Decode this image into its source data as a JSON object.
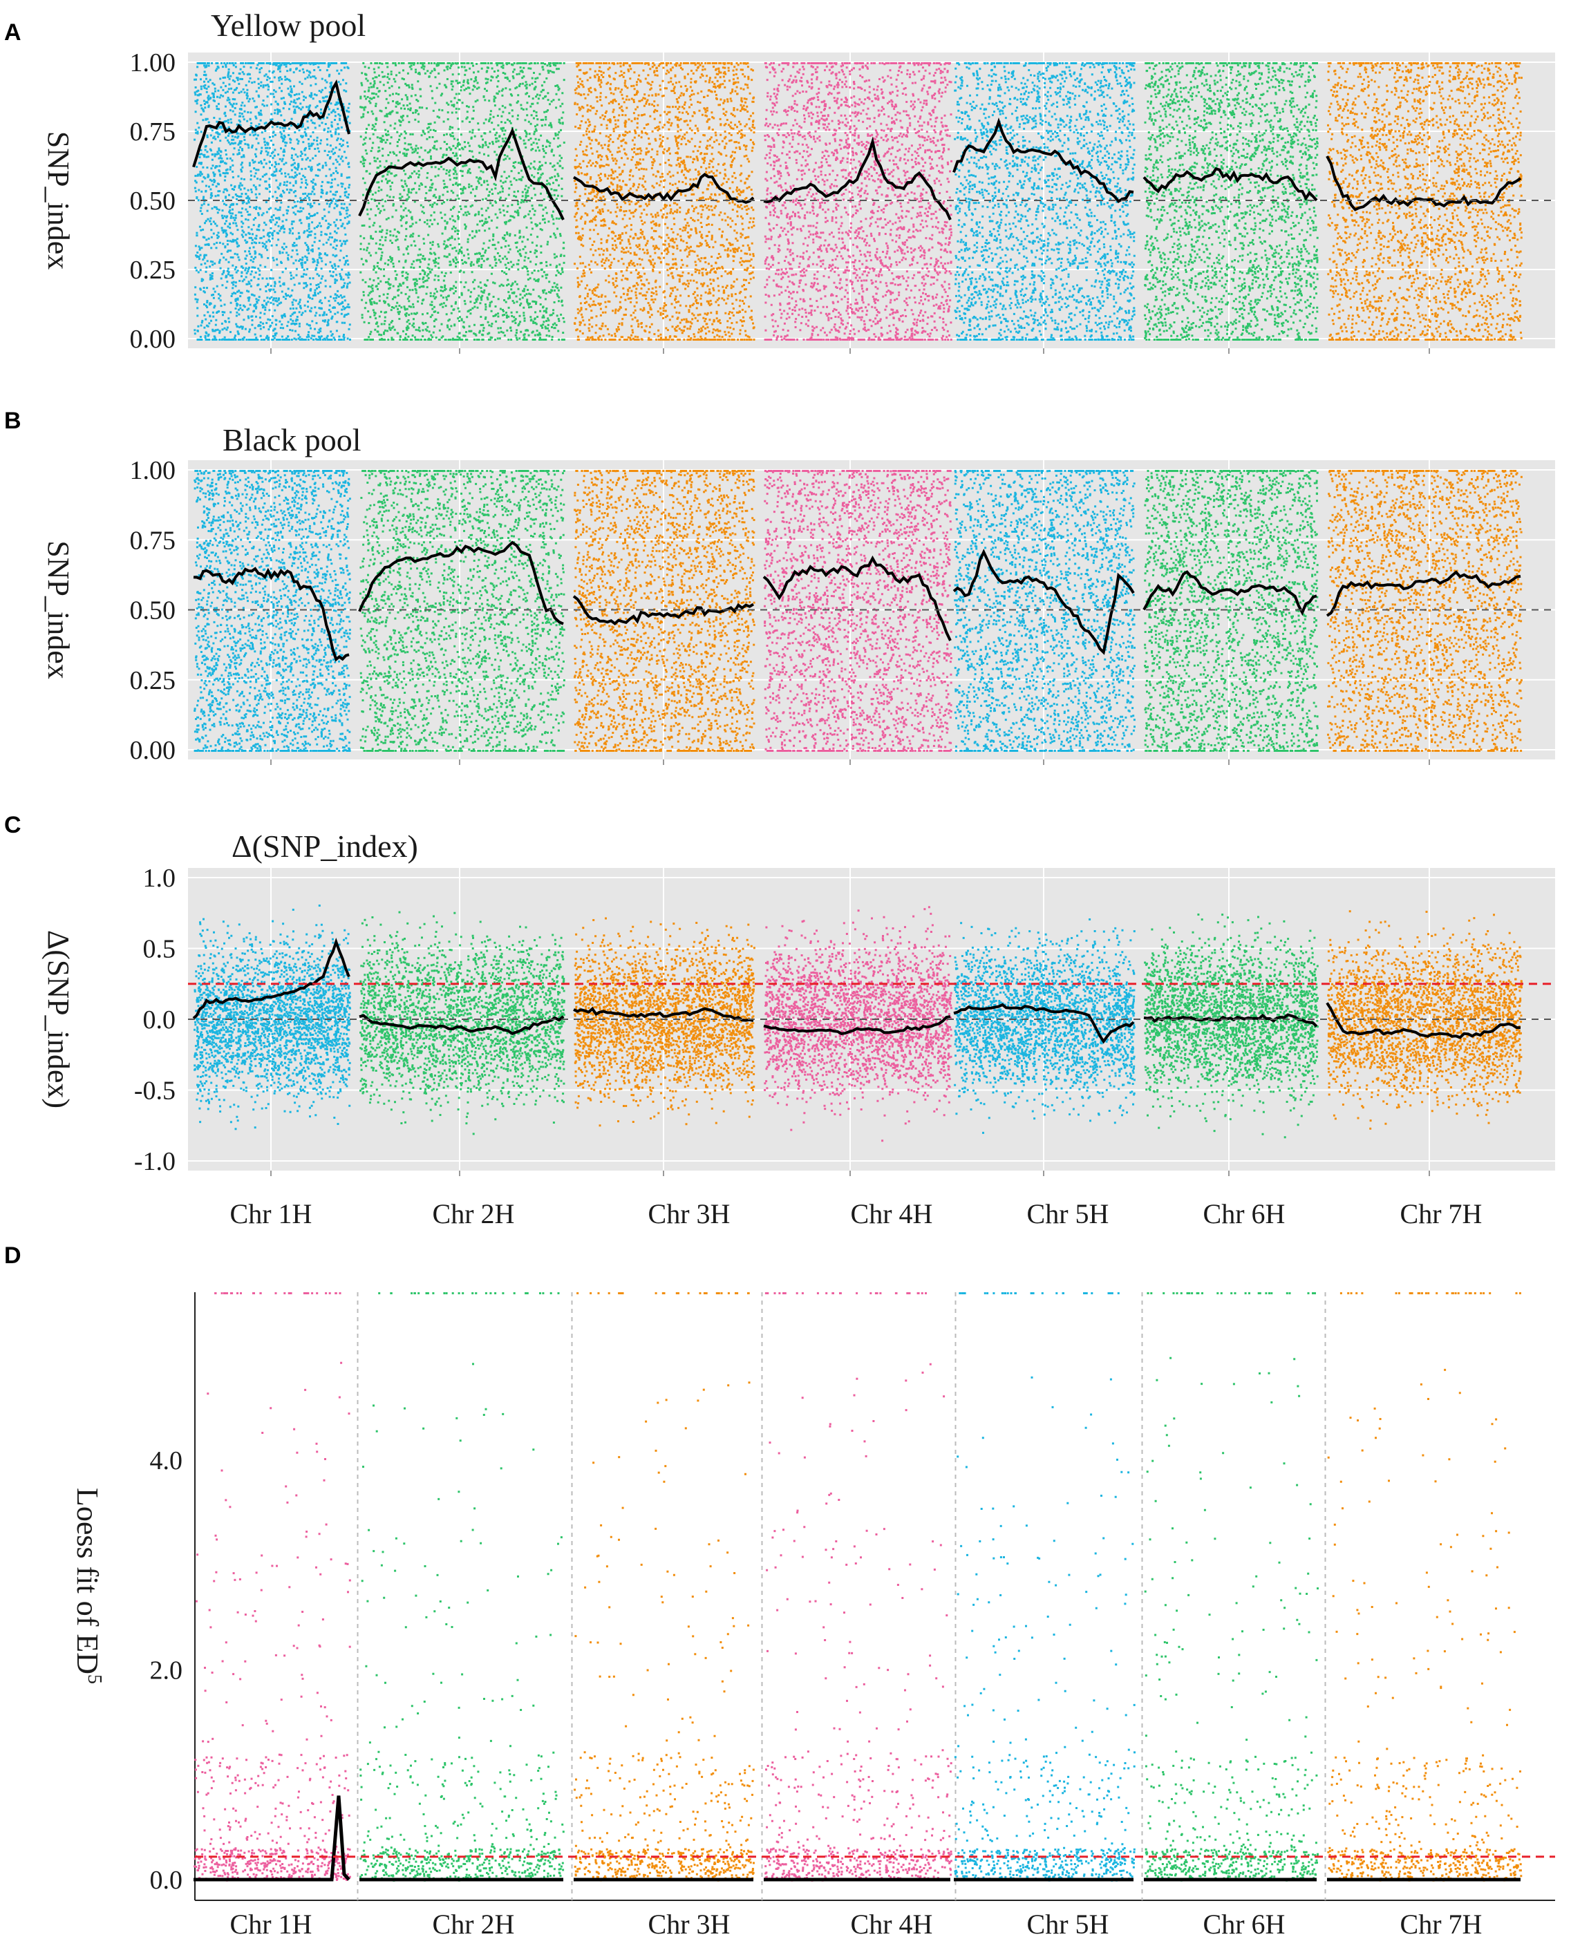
{
  "figure": {
    "panel_letters": [
      "A",
      "B",
      "C",
      "D"
    ]
  },
  "chart_data": [
    {
      "id": "A",
      "type": "scatter",
      "title": "Yellow pool",
      "ylabel": "SNP_index",
      "xlabel": "",
      "ylim": [
        0,
        1
      ],
      "yticks": [
        0.0,
        0.25,
        0.5,
        0.75,
        1.0
      ],
      "ytick_labels": [
        "0.00",
        "0.25",
        "0.50",
        "0.75",
        "1.00"
      ],
      "reference_line": {
        "value": 0.5,
        "style": "dashed",
        "color": "#555555"
      },
      "background": "#e6e6e6",
      "categories": [
        "Chr 1H",
        "Chr 2H",
        "Chr 3H",
        "Chr 4H",
        "Chr 5H",
        "Chr 6H",
        "Chr 7H"
      ],
      "series": [
        {
          "name": "Chr 1H",
          "color": "#1bb5e0",
          "loess": [
            0.62,
            0.76,
            0.78,
            0.75,
            0.76,
            0.75,
            0.77,
            0.78,
            0.77,
            0.82,
            0.8,
            0.92,
            0.74
          ]
        },
        {
          "name": "Chr 2H",
          "color": "#2ec46a",
          "loess": [
            0.45,
            0.6,
            0.62,
            0.63,
            0.63,
            0.64,
            0.64,
            0.64,
            0.6,
            0.76,
            0.58,
            0.55,
            0.43
          ]
        },
        {
          "name": "Chr 3H",
          "color": "#f28e0c",
          "loess": [
            0.59,
            0.55,
            0.54,
            0.52,
            0.51,
            0.52,
            0.51,
            0.52,
            0.55,
            0.6,
            0.53,
            0.5,
            0.51
          ]
        },
        {
          "name": "Chr 4H",
          "color": "#ec5f9e",
          "loess": [
            0.5,
            0.5,
            0.54,
            0.56,
            0.52,
            0.55,
            0.58,
            0.7,
            0.56,
            0.55,
            0.6,
            0.52,
            0.43
          ]
        },
        {
          "name": "Chr 5H",
          "color": "#1bb5e0",
          "loess": [
            0.6,
            0.7,
            0.68,
            0.78,
            0.67,
            0.68,
            0.67,
            0.66,
            0.62,
            0.6,
            0.55,
            0.5,
            0.53
          ]
        },
        {
          "name": "Chr 6H",
          "color": "#2ec46a",
          "loess": [
            0.58,
            0.53,
            0.58,
            0.6,
            0.58,
            0.6,
            0.59,
            0.58,
            0.6,
            0.56,
            0.58,
            0.53,
            0.5
          ]
        },
        {
          "name": "Chr 7H",
          "color": "#f28e0c",
          "loess": [
            0.67,
            0.52,
            0.47,
            0.51,
            0.5,
            0.49,
            0.51,
            0.48,
            0.5,
            0.5,
            0.48,
            0.55,
            0.58
          ]
        }
      ]
    },
    {
      "id": "B",
      "type": "scatter",
      "title": "Black pool",
      "ylabel": "SNP_index",
      "xlabel": "",
      "ylim": [
        0,
        1
      ],
      "yticks": [
        0.0,
        0.25,
        0.5,
        0.75,
        1.0
      ],
      "ytick_labels": [
        "0.00",
        "0.25",
        "0.50",
        "0.75",
        "1.00"
      ],
      "reference_line": {
        "value": 0.5,
        "style": "dashed",
        "color": "#555555"
      },
      "background": "#e6e6e6",
      "categories": [
        "Chr 1H",
        "Chr 2H",
        "Chr 3H",
        "Chr 4H",
        "Chr 5H",
        "Chr 6H",
        "Chr 7H"
      ],
      "series": [
        {
          "name": "Chr 1H",
          "color": "#1bb5e0",
          "loess": [
            0.6,
            0.64,
            0.62,
            0.6,
            0.64,
            0.63,
            0.62,
            0.64,
            0.6,
            0.58,
            0.5,
            0.31,
            0.34
          ]
        },
        {
          "name": "Chr 2H",
          "color": "#2ec46a",
          "loess": [
            0.5,
            0.62,
            0.67,
            0.68,
            0.69,
            0.7,
            0.72,
            0.71,
            0.7,
            0.75,
            0.68,
            0.5,
            0.45
          ]
        },
        {
          "name": "Chr 3H",
          "color": "#f28e0c",
          "loess": [
            0.55,
            0.48,
            0.46,
            0.45,
            0.47,
            0.48,
            0.49,
            0.48,
            0.5,
            0.49,
            0.5,
            0.51,
            0.52
          ]
        },
        {
          "name": "Chr 4H",
          "color": "#ec5f9e",
          "loess": [
            0.62,
            0.55,
            0.63,
            0.64,
            0.63,
            0.65,
            0.63,
            0.68,
            0.63,
            0.6,
            0.62,
            0.52,
            0.39
          ]
        },
        {
          "name": "Chr 5H",
          "color": "#1bb5e0",
          "loess": [
            0.58,
            0.55,
            0.7,
            0.6,
            0.6,
            0.61,
            0.6,
            0.55,
            0.48,
            0.42,
            0.35,
            0.62,
            0.56
          ]
        },
        {
          "name": "Chr 6H",
          "color": "#2ec46a",
          "loess": [
            0.5,
            0.59,
            0.56,
            0.64,
            0.58,
            0.56,
            0.57,
            0.56,
            0.59,
            0.57,
            0.58,
            0.5,
            0.55
          ]
        },
        {
          "name": "Chr 7H",
          "color": "#f28e0c",
          "loess": [
            0.47,
            0.58,
            0.6,
            0.59,
            0.6,
            0.58,
            0.61,
            0.6,
            0.64,
            0.61,
            0.58,
            0.6,
            0.62
          ]
        }
      ]
    },
    {
      "id": "C",
      "type": "scatter",
      "title": "Δ(SNP_index)",
      "ylabel": "Δ(SNP_index)",
      "xlabel": "",
      "ylim": [
        -1,
        1
      ],
      "yticks": [
        -1.0,
        -0.5,
        0.0,
        0.5,
        1.0
      ],
      "ytick_labels": [
        "-1.0",
        "-0.5",
        "0.0",
        "0.5",
        "1.0"
      ],
      "reference_line": {
        "value": 0.0,
        "style": "dashed",
        "color": "#555555"
      },
      "threshold_line": {
        "value": 0.25,
        "style": "dashed",
        "color": "#e8202a"
      },
      "background": "#e6e6e6",
      "categories": [
        "Chr 1H",
        "Chr 2H",
        "Chr 3H",
        "Chr 4H",
        "Chr 5H",
        "Chr 6H",
        "Chr 7H"
      ],
      "series": [
        {
          "name": "Chr 1H",
          "color": "#1bb5e0",
          "loess": [
            0.0,
            0.12,
            0.13,
            0.14,
            0.13,
            0.14,
            0.16,
            0.18,
            0.2,
            0.24,
            0.3,
            0.55,
            0.3
          ]
        },
        {
          "name": "Chr 2H",
          "color": "#2ec46a",
          "loess": [
            0.03,
            -0.02,
            -0.04,
            -0.05,
            -0.05,
            -0.06,
            -0.07,
            -0.07,
            -0.06,
            -0.1,
            -0.05,
            -0.02,
            0.02
          ]
        },
        {
          "name": "Chr 3H",
          "color": "#f28e0c",
          "loess": [
            0.08,
            0.06,
            0.05,
            0.04,
            0.03,
            0.03,
            0.03,
            0.04,
            0.05,
            0.07,
            0.03,
            0.0,
            -0.01
          ]
        },
        {
          "name": "Chr 4H",
          "color": "#ec5f9e",
          "loess": [
            -0.05,
            -0.07,
            -0.08,
            -0.09,
            -0.07,
            -0.1,
            -0.08,
            -0.07,
            -0.1,
            -0.08,
            -0.06,
            -0.05,
            0.02
          ]
        },
        {
          "name": "Chr 5H",
          "color": "#1bb5e0",
          "loess": [
            0.05,
            0.08,
            0.07,
            0.09,
            0.08,
            0.08,
            0.07,
            0.05,
            0.06,
            0.03,
            -0.15,
            -0.05,
            -0.02
          ]
        },
        {
          "name": "Chr 6H",
          "color": "#2ec46a",
          "loess": [
            0.01,
            0.0,
            0.01,
            0.01,
            0.0,
            0.0,
            0.01,
            0.0,
            0.01,
            0.0,
            0.02,
            0.0,
            -0.05
          ]
        },
        {
          "name": "Chr 7H",
          "color": "#f28e0c",
          "loess": [
            0.12,
            -0.08,
            -0.1,
            -0.09,
            -0.1,
            -0.07,
            -0.12,
            -0.1,
            -0.12,
            -0.11,
            -0.1,
            -0.04,
            -0.06
          ]
        }
      ]
    },
    {
      "id": "D",
      "type": "scatter",
      "title": "",
      "ylabel": "Loess fit of ED",
      "ylabel_superscript": "5",
      "xlabel": "",
      "ylim": [
        0,
        5.6
      ],
      "yticks": [
        0.0,
        2.0,
        4.0
      ],
      "ytick_labels": [
        "0.0",
        "2.0",
        "4.0"
      ],
      "threshold_line": {
        "value": 0.1,
        "style": "dashed",
        "color": "#e8202a"
      },
      "background": "#ffffff",
      "categories": [
        "Chr 1H",
        "Chr 2H",
        "Chr 3H",
        "Chr 4H",
        "Chr 5H",
        "Chr 6H",
        "Chr 7H"
      ],
      "series": [
        {
          "name": "Chr 1H",
          "color": "#ec5f9e",
          "peak": 0.8
        },
        {
          "name": "Chr 2H",
          "color": "#2ec46a",
          "peak": 0.0
        },
        {
          "name": "Chr 3H",
          "color": "#f28e0c",
          "peak": 0.0
        },
        {
          "name": "Chr 4H",
          "color": "#ec5f9e",
          "peak": 0.0
        },
        {
          "name": "Chr 5H",
          "color": "#1bb5e0",
          "peak": 0.0
        },
        {
          "name": "Chr 6H",
          "color": "#2ec46a",
          "peak": 0.0
        },
        {
          "name": "Chr 7H",
          "color": "#f28e0c",
          "peak": 0.0
        }
      ]
    }
  ]
}
